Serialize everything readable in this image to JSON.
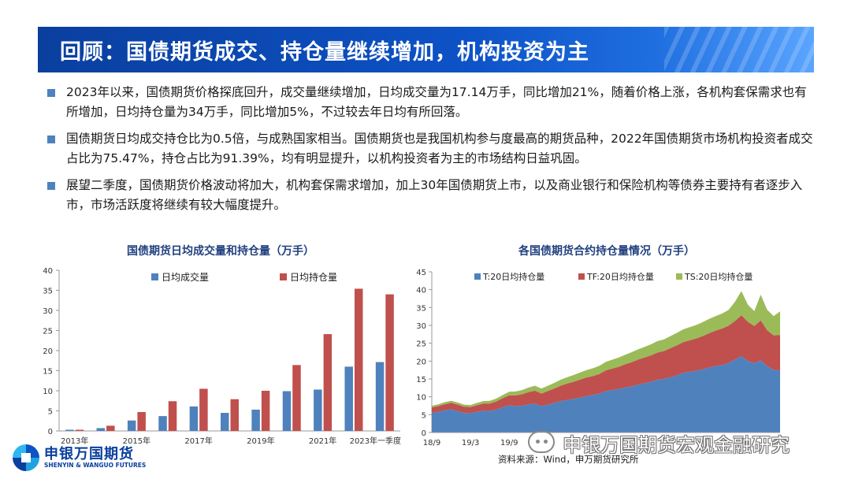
{
  "slide": {
    "title": "回顾：国债期货成交、持仓量继续增加，机构投资为主",
    "bullets": [
      "2023年以来，国债期货价格探底回升，成交量继续增加，日均成交量为17.14万手，同比增加21%，随着价格上涨，各机构套保需求也有所增加，日均持仓量为34万手，同比增加5%，不过较去年日均有所回落。",
      "国债期货日均成交持仓比为0.5倍，与成熟国家相当。国债期货也是我国机构参与度最高的期货品种，2022年国债期货市场机构投资者成交占比为75.47%，持仓占比为91.39%，均有明显提升，以机构投资者为主的市场结构日益巩固。",
      "展望二季度，国债期货价格波动将加大，机构套保需求增加，加上30年国债期货上市，以及商业银行和保险机构等债券主要持有者逐步入市，市场活跃度将继续有较大幅度提升。"
    ],
    "source": "资料来源：Wind，申万期货研究所",
    "logo": {
      "cn": "申银万国期货",
      "en": "SHENYIN & WANGUO FUTURES",
      "icon": "company-logo-icon"
    },
    "watermark": {
      "text": "申银万国期货宏观金融研究",
      "icon": "wechat-icon"
    }
  },
  "colors": {
    "title_bg": "#0d52c6",
    "bullet": "#4f81bd",
    "blue": "#4f81bd",
    "red": "#c0504d",
    "green": "#9bbb59"
  },
  "chart_data": [
    {
      "type": "bar",
      "title": "国债期货日均成交量和持仓量（万手）",
      "categories": [
        "2013年",
        "2014年",
        "2015年",
        "2016年",
        "2017年",
        "2018年",
        "2019年",
        "2020年",
        "2021年",
        "2022年",
        "2023年一季度"
      ],
      "tick_labels": [
        "2013年",
        "2015年",
        "2017年",
        "2019年",
        "2021年",
        "2023年一季度"
      ],
      "y_ticks": [
        "0",
        "5",
        "10",
        "15",
        "20",
        "25",
        "30",
        "35",
        "40"
      ],
      "ylim": [
        0,
        40
      ],
      "series": [
        {
          "name": "日均成交量",
          "color": "#4f81bd",
          "values": [
            0.3,
            0.7,
            2.6,
            3.7,
            6.1,
            4.5,
            5.3,
            9.9,
            10.3,
            16.0,
            17.14
          ]
        },
        {
          "name": "日均持仓量",
          "color": "#c0504d",
          "values": [
            0.3,
            1.3,
            4.7,
            7.4,
            10.5,
            7.9,
            10.0,
            16.4,
            24.1,
            35.4,
            34.0
          ]
        }
      ],
      "legend": "top"
    },
    {
      "type": "area",
      "stacked": true,
      "title": "各国债期货合约持仓量情况（万手）",
      "x": [
        "18/9",
        "18/10",
        "18/11",
        "18/12",
        "19/1",
        "19/2",
        "19/3",
        "19/4",
        "19/5",
        "19/6",
        "19/7",
        "19/8",
        "19/9",
        "19/10",
        "19/11",
        "19/12",
        "20/1",
        "20/2",
        "20/3",
        "20/4",
        "20/5",
        "20/6",
        "20/7",
        "20/8",
        "20/9",
        "20/10",
        "20/11",
        "20/12",
        "21/1",
        "21/2",
        "21/3",
        "21/4",
        "21/5",
        "21/6",
        "21/7",
        "21/8",
        "21/9",
        "21/10",
        "21/11",
        "21/12",
        "22/1",
        "22/2",
        "22/3",
        "22/4",
        "22/5",
        "22/6",
        "22/7",
        "22/8",
        "22/9",
        "22/10",
        "22/11",
        "22/12",
        "23/1",
        "23/2",
        "23/3"
      ],
      "x_tick_labels": [
        "18/9",
        "19/3",
        "19/9"
      ],
      "y_ticks": [
        "0",
        "5",
        "10",
        "15",
        "20",
        "25",
        "30",
        "35",
        "40",
        "45"
      ],
      "ylim": [
        0,
        45
      ],
      "series": [
        {
          "name": "T:20日均持仓量",
          "color": "#4f81bd",
          "values": [
            5.5,
            5.8,
            6.2,
            6.5,
            6.0,
            5.5,
            5.4,
            5.8,
            6.1,
            6.0,
            6.4,
            7.1,
            7.6,
            7.4,
            7.5,
            7.9,
            8.1,
            7.4,
            7.8,
            8.3,
            8.8,
            9.1,
            9.4,
            9.8,
            10.2,
            10.5,
            10.9,
            11.6,
            11.9,
            12.2,
            12.6,
            12.9,
            13.4,
            13.8,
            14.2,
            14.8,
            15.0,
            15.5,
            16.0,
            16.7,
            17.0,
            17.3,
            17.7,
            18.2,
            18.6,
            18.9,
            19.4,
            20.4,
            21.4,
            20.0,
            19.4,
            20.2,
            18.6,
            17.6,
            17.3
          ]
        },
        {
          "name": "TF:20日均持仓量",
          "color": "#c0504d",
          "values": [
            1.5,
            1.6,
            1.7,
            1.8,
            1.8,
            1.7,
            1.7,
            1.8,
            2.0,
            2.1,
            2.3,
            2.5,
            2.8,
            3.0,
            3.2,
            3.4,
            3.6,
            3.5,
            3.8,
            4.0,
            4.3,
            4.6,
            4.8,
            5.0,
            5.2,
            5.3,
            5.5,
            5.8,
            6.0,
            6.2,
            6.5,
            6.8,
            7.0,
            7.2,
            7.4,
            7.6,
            7.8,
            8.1,
            8.4,
            8.6,
            8.8,
            9.0,
            9.3,
            9.6,
            9.9,
            10.2,
            10.5,
            10.8,
            11.4,
            11.0,
            10.4,
            11.2,
            10.0,
            9.6,
            10.0
          ]
        },
        {
          "name": "TS:20日均持仓量",
          "color": "#9bbb59",
          "values": [
            0.5,
            0.5,
            0.6,
            0.6,
            0.6,
            0.6,
            0.6,
            0.7,
            0.7,
            0.8,
            0.8,
            0.9,
            1.0,
            1.1,
            1.2,
            1.3,
            1.4,
            1.4,
            1.5,
            1.6,
            1.7,
            1.8,
            1.9,
            2.0,
            2.1,
            2.2,
            2.3,
            2.4,
            2.5,
            2.6,
            2.7,
            2.8,
            2.9,
            3.0,
            3.1,
            3.2,
            3.3,
            3.4,
            3.5,
            3.6,
            3.7,
            3.8,
            3.9,
            4.0,
            4.1,
            4.2,
            4.4,
            5.4,
            6.8,
            4.8,
            4.2,
            7.2,
            5.8,
            5.4,
            6.6
          ]
        }
      ],
      "legend": "top"
    }
  ]
}
